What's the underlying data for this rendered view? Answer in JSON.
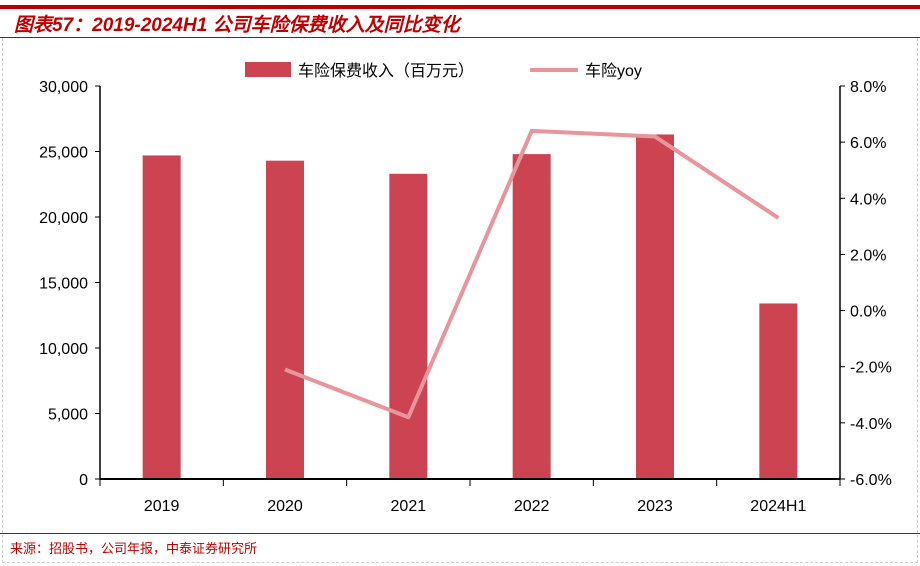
{
  "title": "图表57：2019-2024H1 公司车险保费收入及同比变化",
  "source": "来源：招股书，公司年报，中泰证券研究所",
  "chart_data": {
    "type": "bar+line",
    "categories": [
      "2019",
      "2020",
      "2021",
      "2022",
      "2023",
      "2024H1"
    ],
    "series": [
      {
        "name": "车险保费收入（百万元）",
        "type": "bar",
        "axis": "left",
        "color": "#cc4452",
        "values": [
          24700,
          24300,
          23300,
          24800,
          26300,
          13400
        ]
      },
      {
        "name": "车险yoy",
        "type": "line",
        "axis": "right",
        "color": "#e8959b",
        "values": [
          null,
          -2.1,
          -3.8,
          6.4,
          6.2,
          3.3
        ]
      }
    ],
    "left_axis": {
      "ylim": [
        0,
        30000
      ],
      "ticks": [
        "0",
        "5,000",
        "10,000",
        "15,000",
        "20,000",
        "25,000",
        "30,000"
      ]
    },
    "right_axis": {
      "ylim": [
        -6,
        8
      ],
      "ticks": [
        "-6.0%",
        "-4.0%",
        "-2.0%",
        "0.0%",
        "2.0%",
        "4.0%",
        "6.0%",
        "8.0%"
      ]
    },
    "legend": "top",
    "grid": false
  }
}
